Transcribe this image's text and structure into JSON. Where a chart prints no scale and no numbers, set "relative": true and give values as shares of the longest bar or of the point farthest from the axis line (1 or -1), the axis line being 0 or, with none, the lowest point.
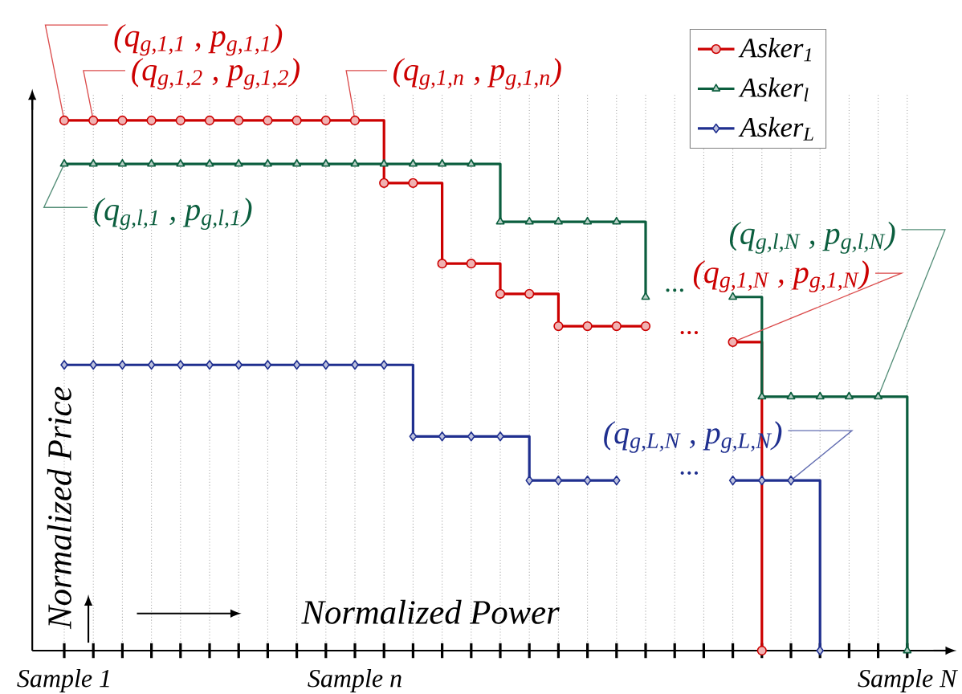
{
  "chart_data": {
    "type": "step",
    "relative": true,
    "grid": "x",
    "legend": "top right",
    "xlabel": "Normalized Power",
    "ylabel": "Normalized Price",
    "categories": [
      "Sample 1",
      null,
      null,
      null,
      null,
      null,
      null,
      null,
      null,
      null,
      "Sample n",
      null,
      null,
      null,
      null,
      null,
      null,
      null,
      null,
      null,
      null,
      null,
      null,
      null,
      null,
      null,
      null,
      null,
      null,
      "Sample N"
    ],
    "series": [
      {
        "name": "Asker$_{1}$",
        "color": "#cc0000",
        "marker": "circle",
        "values": [
          1.0,
          1.0,
          1.0,
          1.0,
          1.0,
          1.0,
          1.0,
          1.0,
          1.0,
          1.0,
          1.0,
          0.882,
          0.882,
          0.73,
          0.73,
          0.673,
          0.673,
          0.612,
          0.612,
          0.612,
          0.612,
          null,
          null,
          0.582,
          0,
          null,
          null,
          null,
          null,
          null
        ]
      },
      {
        "name": "Asker$_{l}$",
        "color": "#0b5e3e",
        "marker": "triangle",
        "values": [
          0.918,
          0.918,
          0.918,
          0.918,
          0.918,
          0.918,
          0.918,
          0.918,
          0.918,
          0.918,
          0.918,
          0.918,
          0.918,
          0.918,
          0.918,
          0.809,
          0.809,
          0.809,
          0.809,
          0.809,
          0.667,
          null,
          null,
          0.667,
          0.479,
          0.479,
          0.479,
          0.479,
          0.479,
          0
        ]
      },
      {
        "name": "Asker$_{L}$",
        "color": "#1f2f8f",
        "marker": "diamond",
        "values": [
          0.539,
          0.539,
          0.539,
          0.539,
          0.539,
          0.539,
          0.539,
          0.539,
          0.539,
          0.539,
          0.539,
          0.539,
          0.404,
          0.404,
          0.404,
          0.404,
          0.321,
          0.321,
          0.321,
          0.321,
          null,
          null,
          null,
          0.321,
          0.321,
          0.321,
          0,
          null,
          null,
          null
        ]
      }
    ],
    "annotations": [
      "(q$_{g,1,1}$ , p$_{g,1,1}$)",
      "(q$_{g,1,2}$ , p$_{g,1,2}$)",
      "(q$_{g,1,n}$ , p$_{g,1,n}$)",
      "(q$_{g,l,1}$ , p$_{g,l,1}$)",
      "(q$_{g,l,N}$ , p$_{g,l,N}$)",
      "(q$_{g,1,N}$ , p$_{g,1,N}$)",
      "(q$_{g,L,N}$ , p$_{g,L,N}$)",
      "...",
      "...",
      "..."
    ]
  }
}
